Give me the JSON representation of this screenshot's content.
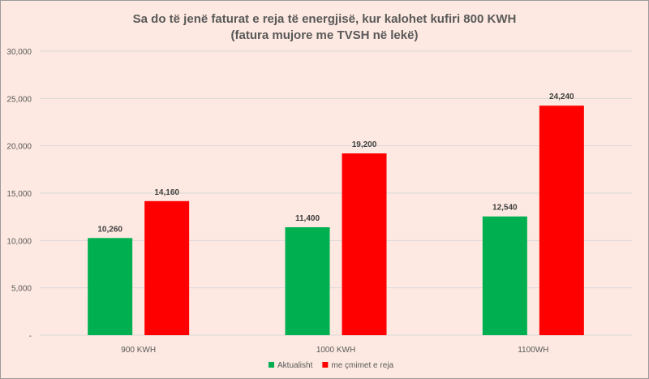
{
  "chart_data": {
    "type": "bar",
    "title": "Sa do të jenë faturat e reja të energjisë, kur kalohet kufiri 800 KWH",
    "subtitle": "(fatura mujore me TVSH në lekë)",
    "categories": [
      "900 KWH",
      "1000 KWH",
      "1100WH"
    ],
    "series": [
      {
        "name": "Aktualisht",
        "color": "#00b050",
        "values": [
          10260,
          11400,
          12540
        ]
      },
      {
        "name": "me çmimet e reja",
        "color": "#ff0000",
        "values": [
          14160,
          19200,
          24240
        ]
      }
    ],
    "data_labels": [
      [
        "10,260",
        "11,400",
        "12,540"
      ],
      [
        "14,160",
        "19,200",
        "24,240"
      ]
    ],
    "ylim": [
      0,
      30000
    ],
    "yticks": [
      0,
      5000,
      10000,
      15000,
      20000,
      25000,
      30000
    ],
    "ytick_labels": [
      "-",
      "5,000",
      "10,000",
      "15,000",
      "20,000",
      "25,000",
      "30,000"
    ],
    "grid": true,
    "legend_position": "bottom",
    "xlabel": "",
    "ylabel": "",
    "background_color": "#fde9e1"
  }
}
